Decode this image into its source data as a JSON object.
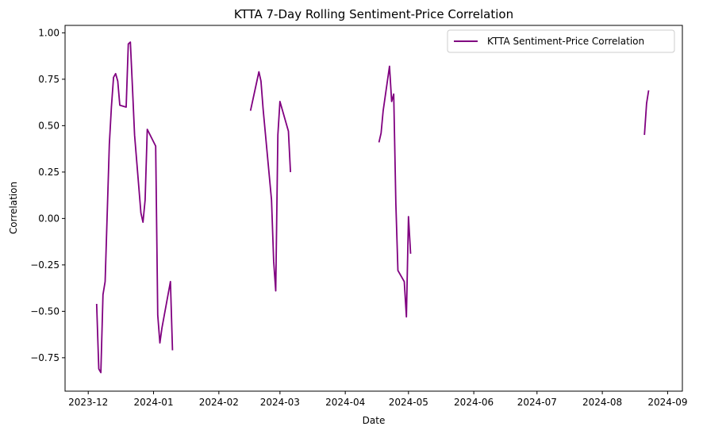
{
  "chart_data": {
    "type": "line",
    "title": "KTTA 7-Day Rolling Sentiment-Price Correlation",
    "xlabel": "Date",
    "ylabel": "Correlation",
    "ylim": [
      -0.93,
      1.04
    ],
    "xlim": [
      "2023-11-20",
      "2024-09-08"
    ],
    "x_ticks": [
      "2023-12",
      "2024-01",
      "2024-02",
      "2024-03",
      "2024-04",
      "2024-05",
      "2024-06",
      "2024-07",
      "2024-08",
      "2024-09"
    ],
    "y_ticks": [
      "1.00",
      "0.75",
      "0.50",
      "0.25",
      "0.00",
      "−0.25",
      "−0.50",
      "−0.75"
    ],
    "y_tick_values": [
      1.0,
      0.75,
      0.5,
      0.25,
      0.0,
      -0.25,
      -0.5,
      -0.75
    ],
    "grid": false,
    "legend": {
      "position": "top-right",
      "entries": [
        "KTTA Sentiment-Price Correlation"
      ]
    },
    "colors": {
      "line": "#800080"
    },
    "series": [
      {
        "name": "KTTA Sentiment-Price Correlation",
        "segments": [
          [
            [
              "2023-12-05",
              -0.46
            ],
            [
              "2023-12-06",
              -0.81
            ],
            [
              "2023-12-07",
              -0.83
            ],
            [
              "2023-12-08",
              -0.41
            ],
            [
              "2023-12-09",
              -0.34
            ],
            [
              "2023-12-11",
              0.4
            ],
            [
              "2023-12-12",
              0.6
            ],
            [
              "2023-12-13",
              0.76
            ],
            [
              "2023-12-14",
              0.78
            ],
            [
              "2023-12-15",
              0.74
            ],
            [
              "2023-12-16",
              0.61
            ],
            [
              "2023-12-19",
              0.6
            ],
            [
              "2023-12-20",
              0.94
            ],
            [
              "2023-12-21",
              0.95
            ],
            [
              "2023-12-22",
              0.7
            ],
            [
              "2023-12-23",
              0.45
            ],
            [
              "2023-12-26",
              0.03
            ],
            [
              "2023-12-27",
              -0.02
            ],
            [
              "2023-12-28",
              0.1
            ],
            [
              "2023-12-29",
              0.48
            ],
            [
              "2024-01-02",
              0.39
            ],
            [
              "2024-01-03",
              -0.52
            ],
            [
              "2024-01-04",
              -0.67
            ],
            [
              "2024-01-05",
              -0.59
            ],
            [
              "2024-01-09",
              -0.34
            ],
            [
              "2024-01-10",
              -0.71
            ]
          ],
          [
            [
              "2024-02-16",
              0.58
            ],
            [
              "2024-02-20",
              0.79
            ],
            [
              "2024-02-21",
              0.74
            ],
            [
              "2024-02-22",
              0.59
            ],
            [
              "2024-02-26",
              0.1
            ],
            [
              "2024-02-27",
              -0.23
            ],
            [
              "2024-02-28",
              -0.39
            ],
            [
              "2024-02-29",
              0.45
            ],
            [
              "2024-03-01",
              0.63
            ],
            [
              "2024-03-05",
              0.47
            ],
            [
              "2024-03-06",
              0.25
            ]
          ],
          [
            [
              "2024-04-17",
              0.41
            ],
            [
              "2024-04-18",
              0.46
            ],
            [
              "2024-04-19",
              0.58
            ],
            [
              "2024-04-22",
              0.82
            ],
            [
              "2024-04-23",
              0.63
            ],
            [
              "2024-04-24",
              0.67
            ],
            [
              "2024-04-25",
              0.08
            ],
            [
              "2024-04-26",
              -0.28
            ],
            [
              "2024-04-29",
              -0.34
            ],
            [
              "2024-04-30",
              -0.53
            ],
            [
              "2024-05-01",
              0.01
            ],
            [
              "2024-05-02",
              -0.19
            ]
          ],
          [
            [
              "2024-08-21",
              0.45
            ],
            [
              "2024-08-22",
              0.62
            ],
            [
              "2024-08-23",
              0.69
            ]
          ]
        ]
      }
    ]
  }
}
